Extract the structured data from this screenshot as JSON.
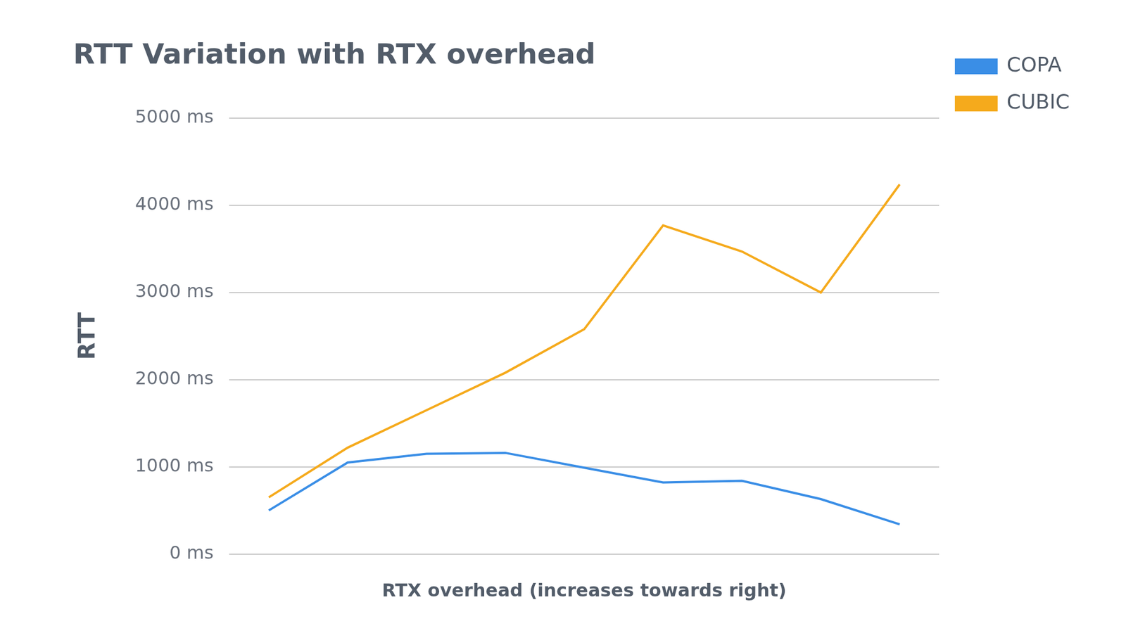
{
  "chart_data": {
    "type": "line",
    "title": "RTT Variation with RTX overhead",
    "x_label": "RTX overhead (increases towards right)",
    "y_label": "RTT",
    "categories": [
      null,
      null,
      null,
      null,
      null,
      null,
      null,
      null,
      null
    ],
    "series": [
      {
        "name": "COPA",
        "color": "#3a8ee6",
        "values": [
          500,
          1050,
          1150,
          1160,
          990,
          820,
          840,
          630,
          340
        ]
      },
      {
        "name": "CUBIC",
        "color": "#f5aa1c",
        "values": [
          650,
          1220,
          1650,
          2080,
          2580,
          3770,
          3470,
          3000,
          4240
        ]
      }
    ],
    "ylim": [
      0,
      5000
    ],
    "yticks": [
      {
        "value": 0,
        "label": "0 ms"
      },
      {
        "value": 1000,
        "label": "1000 ms"
      },
      {
        "value": 2000,
        "label": "2000 ms"
      },
      {
        "value": 3000,
        "label": "3000 ms"
      },
      {
        "value": 4000,
        "label": "4000 ms"
      },
      {
        "value": 5000,
        "label": "5000 ms"
      }
    ],
    "grid": true,
    "legend": "right",
    "tick_labels": "y"
  }
}
